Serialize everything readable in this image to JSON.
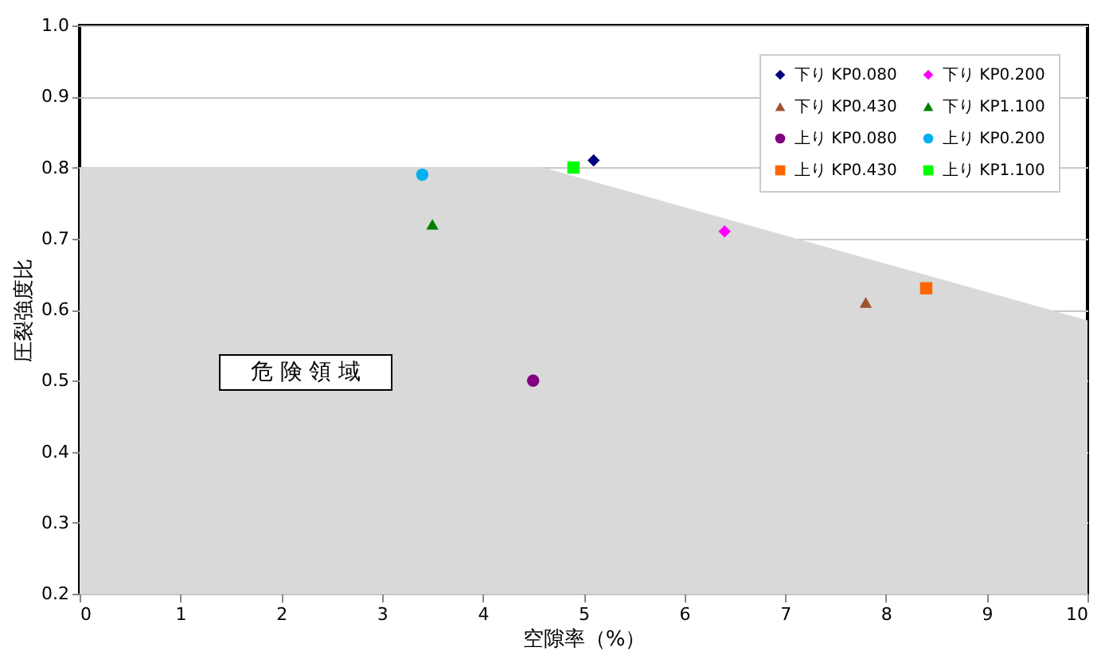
{
  "chart_data": {
    "type": "scatter",
    "xlabel": "空隙率（%）",
    "ylabel": "圧裂強度比",
    "xlim": [
      0,
      10
    ],
    "xticks": [
      0,
      1,
      2,
      3,
      4,
      5,
      6,
      7,
      8,
      9,
      10
    ],
    "ylim": [
      0.2,
      1.0
    ],
    "yticks": [
      0.2,
      0.3,
      0.4,
      0.5,
      0.6,
      0.7,
      0.8,
      0.9,
      {
        "value": 1.0,
        "label": "1.0"
      }
    ],
    "grid": "y",
    "legend": "top right",
    "annotations": [
      "危 険 領 域"
    ],
    "series": [
      {
        "type": "area",
        "color": "#d9d9d9",
        "x": [
          0,
          4.6,
          10
        ],
        "values": [
          0.8,
          0.8,
          0.585
        ]
      },
      {
        "name": "下り KP0.080",
        "color": "#000080",
        "marker": "diamond",
        "x": [
          5.1
        ],
        "values": [
          0.81
        ]
      },
      {
        "name": "下り KP0.200",
        "color": "#ff00ff",
        "marker": "diamond",
        "x": [
          6.4
        ],
        "values": [
          0.71
        ]
      },
      {
        "name": "下り KP0.430",
        "color": "#a0522d",
        "marker": "triangle",
        "x": [
          7.8
        ],
        "values": [
          0.61
        ]
      },
      {
        "name": "下り KP1.100",
        "color": "#008000",
        "marker": "triangle",
        "x": [
          3.5
        ],
        "values": [
          0.72
        ]
      },
      {
        "name": "上り KP0.080",
        "color": "#800080",
        "marker": "circle",
        "x": [
          4.5
        ],
        "values": [
          0.5
        ]
      },
      {
        "name": "上り KP0.200",
        "color": "#00b0f0",
        "marker": "circle",
        "x": [
          3.4
        ],
        "values": [
          0.79
        ]
      },
      {
        "name": "上り KP0.430",
        "color": "#ff6600",
        "marker": "square",
        "x": [
          8.4
        ],
        "values": [
          0.63
        ]
      },
      {
        "name": "上り KP1.100",
        "color": "#00ff00",
        "marker": "square",
        "x": [
          4.9
        ],
        "values": [
          0.8
        ]
      }
    ]
  }
}
